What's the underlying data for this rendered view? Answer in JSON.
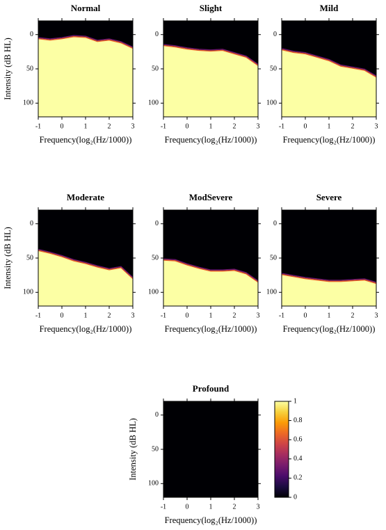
{
  "chart_data": [
    {
      "type": "heatmap",
      "title": "Normal",
      "x_label": "Frequency(log₂(Hz/1000))",
      "y_label": "Intensity (dB HL)",
      "x": [
        -1,
        -0.5,
        0,
        0.5,
        1,
        1.5,
        2,
        2.5,
        3
      ],
      "values": [
        6,
        8,
        6,
        3,
        4,
        10,
        8,
        12,
        20
      ],
      "xlim": [
        -1,
        3
      ],
      "ylim": [
        -20,
        120
      ],
      "y_inverted": true,
      "xticks": [
        -1,
        0,
        1,
        2,
        3
      ],
      "yticks": [
        0,
        50,
        100
      ],
      "background_color": "#000004",
      "fill_color": "#fcffa4"
    },
    {
      "type": "heatmap",
      "title": "Slight",
      "x_label": "Frequency(log₂(Hz/1000))",
      "x": [
        -1,
        -0.5,
        0,
        0.5,
        1,
        1.5,
        2,
        2.5,
        3
      ],
      "values": [
        16,
        18,
        21,
        23,
        24,
        23,
        28,
        33,
        45
      ],
      "xlim": [
        -1,
        3
      ],
      "ylim": [
        -20,
        120
      ],
      "y_inverted": true,
      "xticks": [
        -1,
        0,
        1,
        2,
        3
      ],
      "yticks": [
        0,
        50,
        100
      ],
      "background_color": "#000004",
      "fill_color": "#fcffa4"
    },
    {
      "type": "heatmap",
      "title": "Mild",
      "x_label": "Frequency(log₂(Hz/1000))",
      "x": [
        -1,
        -0.5,
        0,
        0.5,
        1,
        1.5,
        2,
        2.5,
        3
      ],
      "values": [
        22,
        26,
        28,
        33,
        38,
        46,
        49,
        52,
        62
      ],
      "xlim": [
        -1,
        3
      ],
      "ylim": [
        -20,
        120
      ],
      "y_inverted": true,
      "xticks": [
        -1,
        0,
        1,
        2,
        3
      ],
      "yticks": [
        0,
        50,
        100
      ],
      "background_color": "#000004",
      "fill_color": "#fcffa4"
    },
    {
      "type": "heatmap",
      "title": "Moderate",
      "x_label": "Frequency(log₂(Hz/1000))",
      "y_label": "Intensity (dB HL)",
      "x": [
        -1,
        -0.5,
        0,
        0.5,
        1,
        1.5,
        2,
        2.5,
        3
      ],
      "values": [
        39,
        43,
        48,
        54,
        58,
        63,
        67,
        64,
        80
      ],
      "xlim": [
        -1,
        3
      ],
      "ylim": [
        -20,
        120
      ],
      "y_inverted": true,
      "xticks": [
        -1,
        0,
        1,
        2,
        3
      ],
      "yticks": [
        0,
        50,
        100
      ],
      "background_color": "#000004",
      "fill_color": "#fcffa4"
    },
    {
      "type": "heatmap",
      "title": "ModSevere",
      "x_label": "Frequency(log₂(Hz/1000))",
      "x": [
        -1,
        -0.5,
        0,
        0.5,
        1,
        1.5,
        2,
        2.5,
        3
      ],
      "values": [
        53,
        54,
        60,
        65,
        69,
        69,
        68,
        73,
        85
      ],
      "xlim": [
        -1,
        3
      ],
      "ylim": [
        -20,
        120
      ],
      "y_inverted": true,
      "xticks": [
        -1,
        0,
        1,
        2,
        3
      ],
      "yticks": [
        0,
        50,
        100
      ],
      "background_color": "#000004",
      "fill_color": "#fcffa4"
    },
    {
      "type": "heatmap",
      "title": "Severe",
      "x_label": "Frequency(log₂(Hz/1000))",
      "x": [
        -1,
        -0.5,
        0,
        0.5,
        1,
        1.5,
        2,
        2.5,
        3
      ],
      "values": [
        74,
        77,
        80,
        82,
        84,
        84,
        83,
        82,
        87
      ],
      "xlim": [
        -1,
        3
      ],
      "ylim": [
        -20,
        120
      ],
      "y_inverted": true,
      "xticks": [
        -1,
        0,
        1,
        2,
        3
      ],
      "yticks": [
        0,
        50,
        100
      ],
      "background_color": "#000004",
      "fill_color": "#fcffa4"
    },
    {
      "type": "heatmap",
      "title": "Profound",
      "x_label": "Frequency(log₂(Hz/1000))",
      "y_label": "Intensity (dB HL)",
      "x": [
        -1,
        -0.5,
        0,
        0.5,
        1,
        1.5,
        2,
        2.5,
        3
      ],
      "values": [
        null,
        null,
        null,
        null,
        null,
        null,
        null,
        null,
        null
      ],
      "xlim": [
        -1,
        3
      ],
      "ylim": [
        -20,
        120
      ],
      "y_inverted": true,
      "xticks": [
        -1,
        0,
        1,
        2,
        3
      ],
      "yticks": [
        0,
        50,
        100
      ],
      "background_color": "#000004",
      "fill_color": "#fcffa4"
    },
    {
      "type": "colorbar",
      "clim": [
        0,
        1
      ],
      "cticks": [
        0,
        0.2,
        0.4,
        0.6,
        0.8,
        1
      ],
      "colors": [
        "#000004",
        "#1b0c41",
        "#4a0c6b",
        "#781c6d",
        "#a52c60",
        "#cf4446",
        "#ed6925",
        "#fb9b06",
        "#f7d13d",
        "#fcffa4"
      ]
    }
  ]
}
